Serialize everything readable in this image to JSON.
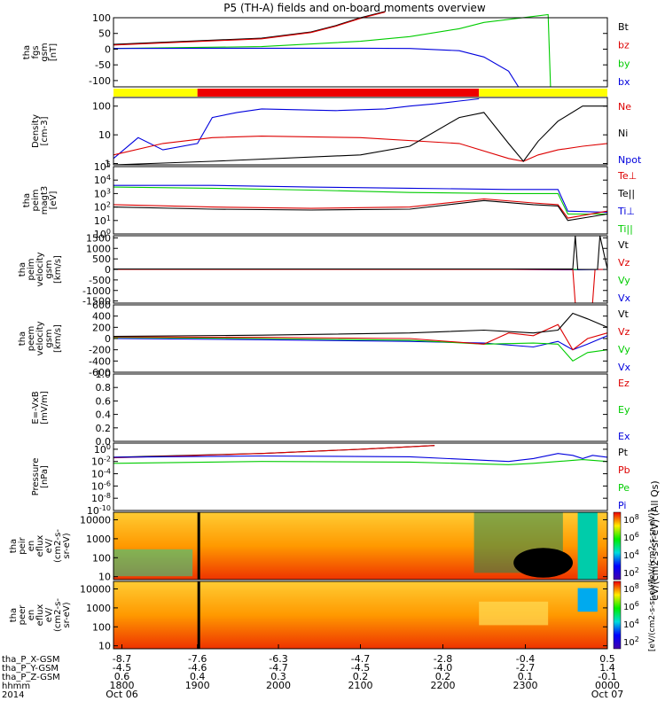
{
  "title": "P5 (TH-A) fields and on-board moments overview",
  "chart_data": [
    {
      "type": "line",
      "panel": "fgs",
      "ylabel": [
        "tha",
        "fgs",
        "gsm",
        "[nT]"
      ],
      "ylim": [
        -120,
        100
      ],
      "yticks": [
        "100",
        "50",
        "0",
        "-50",
        "-100"
      ],
      "yticks_values": [
        100,
        50,
        0,
        -50,
        -100
      ],
      "legend": [
        {
          "name": "Bt",
          "color": "#000000"
        },
        {
          "name": "bz",
          "color": "#dd0000"
        },
        {
          "name": "by",
          "color": "#00cc00"
        },
        {
          "name": "bx",
          "color": "#0000dd"
        }
      ],
      "series": [
        {
          "name": "Bt",
          "color": "#000000",
          "x": [
            0,
            0.3,
            0.4,
            0.45,
            0.5,
            0.55
          ],
          "y": [
            15,
            35,
            55,
            75,
            100,
            120
          ]
        },
        {
          "name": "bz",
          "color": "#dd0000",
          "x": [
            0,
            0.3,
            0.4,
            0.45,
            0.5,
            0.55
          ],
          "y": [
            13,
            33,
            53,
            73,
            98,
            118
          ]
        },
        {
          "name": "by",
          "color": "#00cc00",
          "x": [
            0,
            0.3,
            0.5,
            0.6,
            0.7,
            0.75,
            0.88,
            0.885,
            0.89
          ],
          "y": [
            2,
            8,
            25,
            40,
            65,
            85,
            110,
            -120,
            -120
          ]
        },
        {
          "name": "bx",
          "color": "#0000dd",
          "x": [
            0,
            0.3,
            0.5,
            0.6,
            0.7,
            0.75,
            0.8,
            0.82
          ],
          "y": [
            2,
            3,
            3,
            2,
            -5,
            -25,
            -70,
            -120
          ]
        }
      ]
    },
    {
      "type": "bar",
      "panel": "mode-bar",
      "segments": [
        {
          "from": 0,
          "to": 0.17,
          "color": "#ffff00"
        },
        {
          "from": 0.17,
          "to": 0.74,
          "color": "#ee0000"
        },
        {
          "from": 0.74,
          "to": 1,
          "color": "#ffff00"
        }
      ]
    },
    {
      "type": "line",
      "panel": "density",
      "ylabel": [
        "Density",
        "[cm-3]"
      ],
      "yscale": "log",
      "ylim": [
        0.9,
        200
      ],
      "yticks": [
        "100",
        "10",
        "1"
      ],
      "yticks_values": [
        100,
        10,
        1
      ],
      "legend": [
        {
          "name": "Ne",
          "color": "#dd0000"
        },
        {
          "name": "Ni",
          "color": "#000000"
        },
        {
          "name": "Npot",
          "color": "#0000dd"
        }
      ],
      "series": [
        {
          "name": "Npot",
          "color": "#0000dd",
          "x": [
            0,
            0.05,
            0.1,
            0.17,
            0.2,
            0.25,
            0.3,
            0.45,
            0.55,
            0.6,
            0.65,
            0.7,
            0.74
          ],
          "y": [
            1.5,
            8,
            3,
            5,
            40,
            60,
            80,
            70,
            80,
            100,
            120,
            150,
            180
          ]
        },
        {
          "name": "Ne",
          "color": "#dd0000",
          "x": [
            0,
            0.1,
            0.2,
            0.3,
            0.5,
            0.7,
            0.8,
            0.83,
            0.86,
            0.9,
            0.95,
            1
          ],
          "y": [
            2,
            5,
            8,
            9,
            8,
            5,
            1.5,
            1.2,
            2,
            3,
            4,
            5
          ]
        },
        {
          "name": "Ni",
          "color": "#000000",
          "x": [
            0,
            0.2,
            0.5,
            0.6,
            0.7,
            0.75,
            0.8,
            0.83,
            0.86,
            0.9,
            0.95,
            1
          ],
          "y": [
            0.9,
            1.2,
            2,
            4,
            40,
            60,
            5,
            1.2,
            6,
            30,
            100,
            100
          ]
        }
      ]
    },
    {
      "type": "line",
      "panel": "temperature",
      "ylabel": [
        "tha",
        "peim",
        "magt3",
        "[eV]"
      ],
      "yscale": "log",
      "ylim": [
        1,
        100000
      ],
      "yticks": [
        "10^5",
        "10^4",
        "10^3",
        "10^2",
        "10^1",
        "10^0"
      ],
      "yticks_values": [
        100000,
        10000,
        1000,
        100,
        10,
        1
      ],
      "legend": [
        {
          "name": "Te⊥",
          "color": "#dd0000"
        },
        {
          "name": "Te||",
          "color": "#000000"
        },
        {
          "name": "Ti⊥",
          "color": "#0000dd"
        },
        {
          "name": "Ti||",
          "color": "#00cc00"
        }
      ],
      "series": [
        {
          "name": "Ti⊥",
          "color": "#0000dd",
          "x": [
            0,
            0.2,
            0.4,
            0.6,
            0.8,
            0.9,
            0.92,
            1
          ],
          "y": [
            4000,
            4000,
            3000,
            2500,
            2000,
            2000,
            50,
            40
          ]
        },
        {
          "name": "Ti||",
          "color": "#00cc00",
          "x": [
            0,
            0.2,
            0.4,
            0.6,
            0.8,
            0.9,
            0.92,
            1
          ],
          "y": [
            3000,
            2500,
            1800,
            1200,
            1000,
            1000,
            30,
            30
          ]
        },
        {
          "name": "Te⊥",
          "color": "#dd0000",
          "x": [
            0,
            0.2,
            0.4,
            0.6,
            0.75,
            0.85,
            0.9,
            0.92,
            1
          ],
          "y": [
            150,
            100,
            80,
            100,
            400,
            200,
            150,
            15,
            50
          ]
        },
        {
          "name": "Te||",
          "color": "#000000",
          "x": [
            0,
            0.2,
            0.4,
            0.6,
            0.75,
            0.85,
            0.9,
            0.92,
            1
          ],
          "y": [
            100,
            70,
            60,
            70,
            300,
            150,
            120,
            10,
            30
          ]
        }
      ]
    },
    {
      "type": "line",
      "panel": "peim velocity",
      "ylabel": [
        "tha",
        "peim",
        "velocity",
        "gsm",
        "[km/s]"
      ],
      "ylim": [
        -1600,
        1600
      ],
      "yticks": [
        "1500",
        "1000",
        "500",
        "0",
        "-500",
        "-1000",
        "-1500"
      ],
      "yticks_values": [
        1500,
        1000,
        500,
        0,
        -500,
        -1000,
        -1500
      ],
      "legend": [
        {
          "name": "Vt",
          "color": "#000000"
        },
        {
          "name": "Vz",
          "color": "#dd0000"
        },
        {
          "name": "Vy",
          "color": "#00cc00"
        },
        {
          "name": "Vx",
          "color": "#0000dd"
        }
      ],
      "series": [
        {
          "name": "Vx",
          "color": "#0000dd",
          "x": [
            0,
            0.2,
            0.5,
            0.8,
            0.93,
            1
          ],
          "y": [
            0,
            0,
            0,
            0,
            -20,
            0
          ]
        },
        {
          "name": "Vy",
          "color": "#00cc00",
          "x": [
            0,
            0.2,
            0.5,
            0.8,
            0.93,
            1
          ],
          "y": [
            5,
            5,
            5,
            0,
            0,
            0
          ]
        },
        {
          "name": "Vz",
          "color": "#dd0000",
          "x": [
            0,
            0.5,
            0.93,
            0.935,
            0.97,
            0.975,
            1
          ],
          "y": [
            0,
            0,
            0,
            -1600,
            -1600,
            0,
            0
          ]
        },
        {
          "name": "Vt",
          "color": "#000000",
          "x": [
            0,
            0.5,
            0.93,
            0.935,
            0.94,
            0.98,
            0.985,
            1
          ],
          "y": [
            20,
            20,
            20,
            1600,
            0,
            0,
            1600,
            20
          ]
        }
      ]
    },
    {
      "type": "line",
      "panel": "peem velocity",
      "ylabel": [
        "tha",
        "peem",
        "velocity",
        "gsm",
        "[km/s]"
      ],
      "ylim": [
        -600,
        600
      ],
      "yticks": [
        "600",
        "400",
        "200",
        "0",
        "-200",
        "-400",
        "-600"
      ],
      "yticks_values": [
        600,
        400,
        200,
        0,
        -200,
        -400,
        -600
      ],
      "legend": [
        {
          "name": "Vt",
          "color": "#000000"
        },
        {
          "name": "Vz",
          "color": "#dd0000"
        },
        {
          "name": "Vy",
          "color": "#00cc00"
        },
        {
          "name": "Vx",
          "color": "#0000dd"
        }
      ],
      "series": [
        {
          "name": "Vx",
          "color": "#0000dd",
          "x": [
            0,
            0.3,
            0.6,
            0.75,
            0.85,
            0.9,
            0.93,
            0.96,
            1
          ],
          "y": [
            0,
            -20,
            -50,
            -80,
            -150,
            -50,
            -200,
            -100,
            50
          ]
        },
        {
          "name": "Vy",
          "color": "#00cc00",
          "x": [
            0,
            0.3,
            0.6,
            0.75,
            0.85,
            0.9,
            0.93,
            0.96,
            1
          ],
          "y": [
            20,
            0,
            -30,
            -100,
            -80,
            -100,
            -400,
            -250,
            -200
          ]
        },
        {
          "name": "Vz",
          "color": "#dd0000",
          "x": [
            0,
            0.3,
            0.6,
            0.75,
            0.8,
            0.85,
            0.9,
            0.93,
            0.96,
            1
          ],
          "y": [
            30,
            20,
            0,
            -100,
            100,
            50,
            250,
            -200,
            0,
            100
          ]
        },
        {
          "name": "Vt",
          "color": "#000000",
          "x": [
            0,
            0.3,
            0.6,
            0.75,
            0.85,
            0.9,
            0.93,
            0.96,
            1
          ],
          "y": [
            40,
            60,
            100,
            150,
            100,
            150,
            450,
            350,
            200
          ]
        }
      ]
    },
    {
      "type": "line",
      "panel": "E field",
      "ylabel": [
        "E=-VxB",
        "[mV/m]"
      ],
      "ylim": [
        0,
        1
      ],
      "yticks": [
        "1.0",
        "0.8",
        "0.6",
        "0.4",
        "0.2",
        "0.0"
      ],
      "yticks_values": [
        1.0,
        0.8,
        0.6,
        0.4,
        0.2,
        0.0
      ],
      "legend": [
        {
          "name": "Ez",
          "color": "#dd0000"
        },
        {
          "name": "Ey",
          "color": "#00cc00"
        },
        {
          "name": "Ex",
          "color": "#0000dd"
        }
      ],
      "series": []
    },
    {
      "type": "line",
      "panel": "pressure",
      "ylabel": [
        "Pressure",
        "[nPa]"
      ],
      "yscale": "log",
      "ylim": [
        1e-10,
        10
      ],
      "yticks": [
        "10^0",
        "10^-2",
        "10^-4",
        "10^-6",
        "10^-8",
        "10^-10"
      ],
      "yticks_values": [
        1,
        0.01,
        0.0001,
        1e-06,
        1e-08,
        1e-10
      ],
      "legend": [
        {
          "name": "Pt",
          "color": "#000000"
        },
        {
          "name": "Pb",
          "color": "#dd0000"
        },
        {
          "name": "Pe",
          "color": "#00cc00"
        },
        {
          "name": "Pi",
          "color": "#0000dd"
        }
      ],
      "series": [
        {
          "name": "Pt",
          "color": "#000000",
          "x": [
            0,
            0.3,
            0.5,
            0.65
          ],
          "y": [
            0.05,
            0.2,
            1,
            4
          ]
        },
        {
          "name": "Pb",
          "color": "#dd0000",
          "x": [
            0,
            0.3,
            0.5,
            0.65
          ],
          "y": [
            0.04,
            0.2,
            1,
            4
          ]
        },
        {
          "name": "Pi",
          "color": "#0000dd",
          "x": [
            0,
            0.3,
            0.6,
            0.8,
            0.85,
            0.9,
            0.93,
            0.95,
            0.97,
            1
          ],
          "y": [
            0.05,
            0.08,
            0.06,
            0.01,
            0.03,
            0.2,
            0.1,
            0.03,
            0.1,
            0.05
          ]
        },
        {
          "name": "Pe",
          "color": "#00cc00",
          "x": [
            0,
            0.3,
            0.6,
            0.8,
            0.85,
            0.9,
            0.95,
            1
          ],
          "y": [
            0.005,
            0.01,
            0.008,
            0.003,
            0.005,
            0.01,
            0.02,
            0.01
          ]
        }
      ]
    },
    {
      "type": "heatmap",
      "panel": "peir spectrogram",
      "ylabel": [
        "tha",
        "peir",
        "en",
        "eflux",
        "eV/",
        "(cm2-s-",
        "sr-eV)"
      ],
      "yscale": "log",
      "ylim": [
        7,
        25000
      ],
      "yticks": [
        "10000",
        "1000",
        "100",
        "10"
      ],
      "yticks_values": [
        10000,
        1000,
        100,
        10
      ],
      "colorbar": {
        "label": "[eV/(cm2-s-sr-eV)]",
        "ticks": [
          "10^8",
          "10^6",
          "10^4",
          "10^2"
        ]
      }
    },
    {
      "type": "heatmap",
      "panel": "peer spectrogram",
      "ylabel": [
        "tha",
        "peer",
        "en",
        "eflux",
        "eV/",
        "(cm2-s-",
        "sr-eV)"
      ],
      "yscale": "log",
      "ylim": [
        7,
        25000
      ],
      "yticks": [
        "10000",
        "1000",
        "100",
        "10"
      ],
      "yticks_values": [
        10000,
        1000,
        100,
        10
      ],
      "colorbar": {
        "label": "[eV/(cm2-s-sr-eV)]",
        "ticks": [
          "10^8",
          "10^6",
          "10^4",
          "10^2"
        ]
      }
    }
  ],
  "side_label": "eV/(cm2-s-sr-eV) (All Qs)",
  "xaxis": {
    "rows": [
      {
        "label": "tha_P_X-GSM",
        "values": [
          "-8.7",
          "-7.6",
          "-6.3",
          "-4.7",
          "-2.8",
          "-0.4",
          "0.5"
        ]
      },
      {
        "label": "tha_P_Y-GSM",
        "values": [
          "-4.5",
          "-4.6",
          "-4.7",
          "-4.5",
          "-4.0",
          "-2.7",
          "1.4"
        ]
      },
      {
        "label": "tha_P_Z-GSM",
        "values": [
          "0.6",
          "0.4",
          "0.3",
          "0.2",
          "0.2",
          "0.1",
          "-0.1"
        ]
      },
      {
        "label": "hhmm",
        "values": [
          "1800",
          "1900",
          "2000",
          "2100",
          "2200",
          "2300",
          "0000"
        ]
      },
      {
        "label": "2014",
        "values": [
          "Oct 06",
          "",
          "",
          "",
          "",
          "",
          "Oct 07"
        ]
      }
    ]
  }
}
